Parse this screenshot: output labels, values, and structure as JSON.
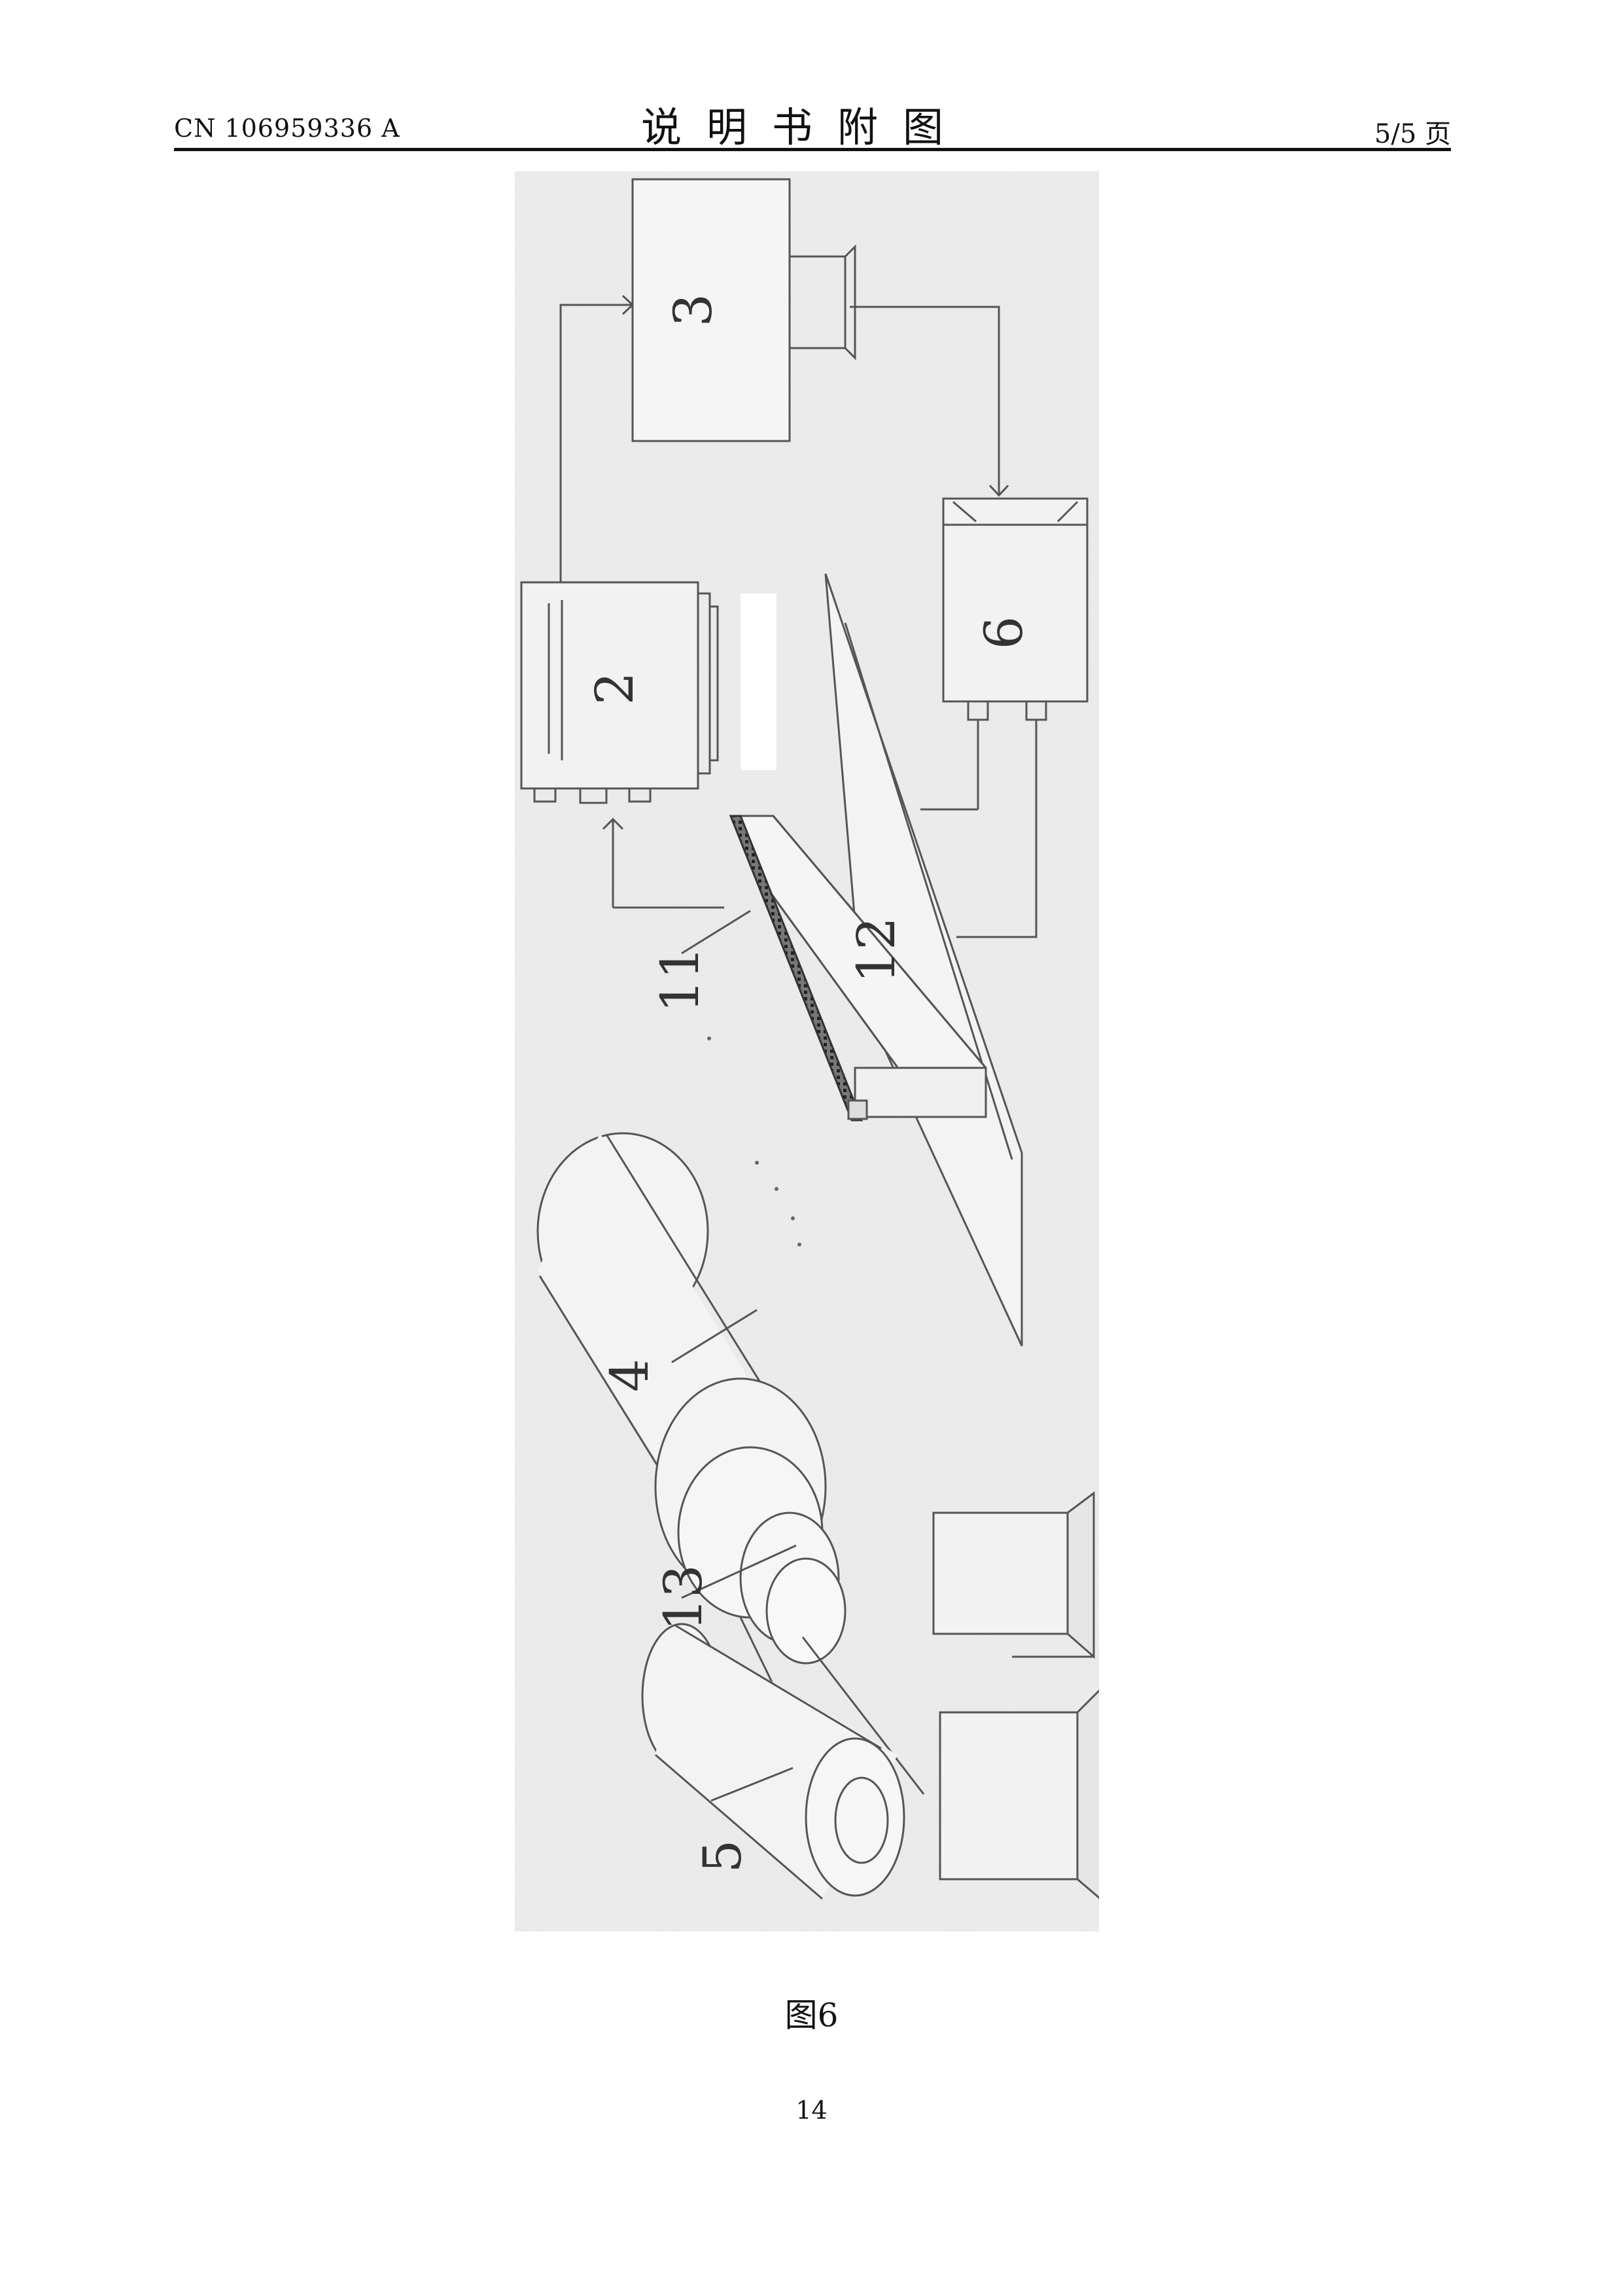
{
  "header": {
    "publication_number": "CN 106959336 A",
    "section_title": "说明书附图",
    "page_indicator": "5/5 页"
  },
  "figure": {
    "labels": {
      "controller": "3",
      "camera": "2",
      "detector": "6",
      "light_source": "12",
      "lens_array": "11",
      "drum": "4",
      "roller": "13",
      "reel": "5"
    },
    "caption": "图6"
  },
  "page_number": "14"
}
